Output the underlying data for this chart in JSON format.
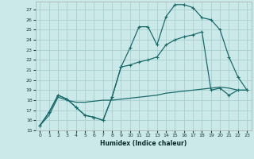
{
  "xlabel": "Humidex (Indice chaleur)",
  "bg_color": "#cce9e9",
  "grid_color": "#aacfcf",
  "line_color": "#1a6b6b",
  "xlim": [
    -0.5,
    23.5
  ],
  "ylim": [
    15,
    27.8
  ],
  "xticks": [
    0,
    1,
    2,
    3,
    4,
    5,
    6,
    7,
    8,
    9,
    10,
    11,
    12,
    13,
    14,
    15,
    16,
    17,
    18,
    19,
    20,
    21,
    22,
    23
  ],
  "yticks": [
    15,
    16,
    17,
    18,
    19,
    20,
    21,
    22,
    23,
    24,
    25,
    26,
    27
  ],
  "curve1_x": [
    0,
    1,
    2,
    3,
    4,
    5,
    6,
    7,
    8,
    9,
    10,
    11,
    12,
    13,
    14,
    15,
    16,
    17,
    18,
    19,
    20,
    21,
    22,
    23
  ],
  "curve1_y": [
    15.5,
    16.8,
    18.5,
    18.1,
    17.3,
    16.5,
    16.3,
    16.0,
    18.3,
    21.3,
    23.2,
    25.3,
    25.3,
    23.5,
    26.3,
    27.5,
    27.5,
    27.2,
    26.2,
    26.0,
    25.0,
    22.3,
    20.3,
    19.0
  ],
  "curve2_x": [
    0,
    1,
    2,
    3,
    4,
    5,
    6,
    7,
    8,
    9,
    10,
    11,
    12,
    13,
    14,
    15,
    16,
    17,
    18,
    19,
    20,
    21,
    22,
    23
  ],
  "curve2_y": [
    15.5,
    16.8,
    18.5,
    18.1,
    17.3,
    16.5,
    16.3,
    16.0,
    18.3,
    21.3,
    21.5,
    21.8,
    22.0,
    22.3,
    23.5,
    24.0,
    24.3,
    24.5,
    24.8,
    19.0,
    19.2,
    18.5,
    19.0,
    19.0
  ],
  "curve3_x": [
    0,
    1,
    2,
    3,
    4,
    5,
    6,
    7,
    8,
    9,
    10,
    11,
    12,
    13,
    14,
    15,
    16,
    17,
    18,
    19,
    20,
    21,
    22,
    23
  ],
  "curve3_y": [
    15.5,
    16.5,
    18.3,
    18.0,
    17.8,
    17.8,
    17.9,
    18.0,
    18.0,
    18.1,
    18.2,
    18.3,
    18.4,
    18.5,
    18.7,
    18.8,
    18.9,
    19.0,
    19.1,
    19.2,
    19.3,
    19.2,
    19.0,
    19.0
  ]
}
